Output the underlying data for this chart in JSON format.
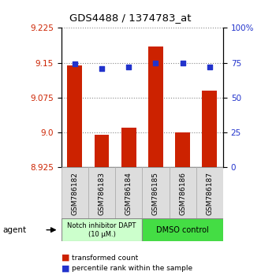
{
  "title": "GDS4488 / 1374783_at",
  "samples": [
    "GSM786182",
    "GSM786183",
    "GSM786184",
    "GSM786185",
    "GSM786186",
    "GSM786187"
  ],
  "red_values": [
    9.145,
    8.995,
    9.01,
    9.185,
    9.0,
    9.09
  ],
  "blue_values": [
    74,
    71,
    72,
    75,
    75,
    72
  ],
  "ylim_left": [
    8.925,
    9.225
  ],
  "ylim_right": [
    0,
    100
  ],
  "yticks_left": [
    8.925,
    9.0,
    9.075,
    9.15,
    9.225
  ],
  "yticks_right": [
    0,
    25,
    50,
    75,
    100
  ],
  "ytick_labels_right": [
    "0",
    "25",
    "50",
    "75",
    "100%"
  ],
  "bar_color": "#cc2200",
  "dot_color": "#2233cc",
  "group1_label": "Notch inhibitor DAPT\n(10 μM.)",
  "group2_label": "DMSO control",
  "group1_color": "#ccffcc",
  "group2_color": "#44dd44",
  "agent_label": "agent",
  "legend_red": "transformed count",
  "legend_blue": "percentile rank within the sample",
  "dotted_line_color": "#888888",
  "bar_width": 0.55,
  "bg_color": "#dddddd"
}
